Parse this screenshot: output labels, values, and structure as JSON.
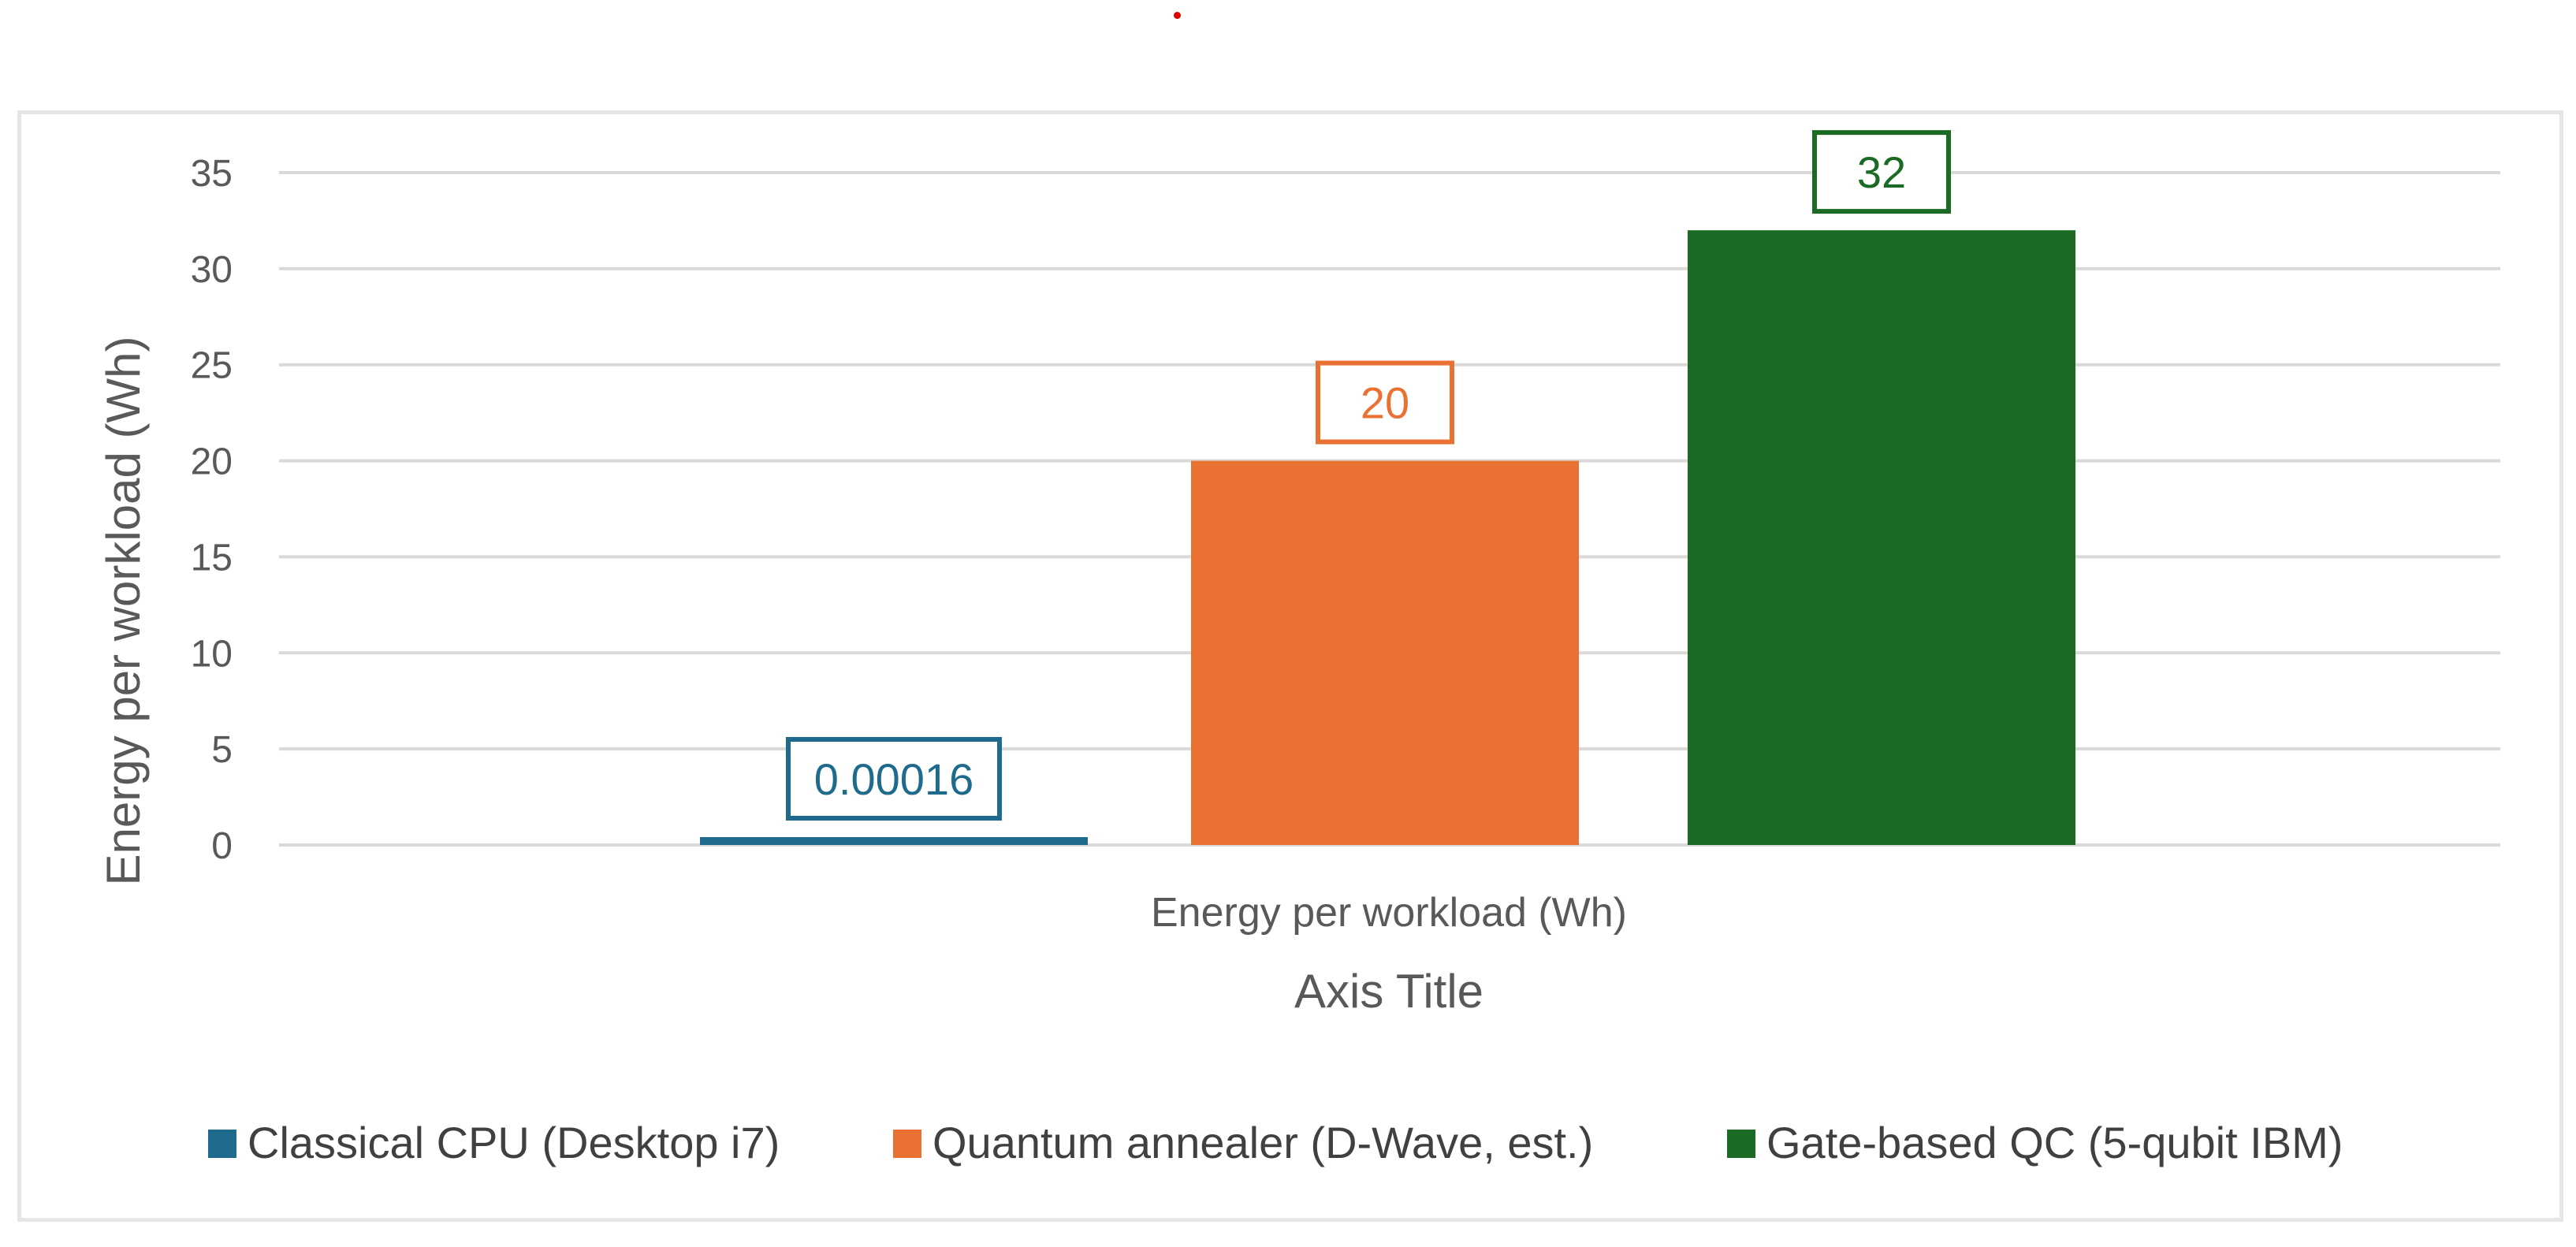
{
  "chart_data": {
    "type": "bar",
    "categories": [
      "Energy per workload (Wh)"
    ],
    "series": [
      {
        "name": "Classical CPU (Desktop i7)",
        "values": [
          0.00016
        ],
        "color": "#1f6b8e",
        "label": "0.00016"
      },
      {
        "name": "Quantum annealer (D-Wave, est.)",
        "values": [
          20
        ],
        "color": "#e97132",
        "label": "20"
      },
      {
        "name": "Gate-based QC (5-qubit IBM)",
        "values": [
          32
        ],
        "color": "#1b6b24",
        "label": "32"
      }
    ],
    "title": "",
    "xlabel": "Axis Title",
    "ylabel": "Energy per workload (Wh)",
    "ylim": [
      0,
      35
    ],
    "yticks": [
      0,
      5,
      10,
      15,
      20,
      25,
      30,
      35
    ],
    "grid": true,
    "legend": "bottom"
  },
  "colors": {
    "grid": "#d9d9d9",
    "text": "#595959",
    "marker": "#e00000"
  }
}
